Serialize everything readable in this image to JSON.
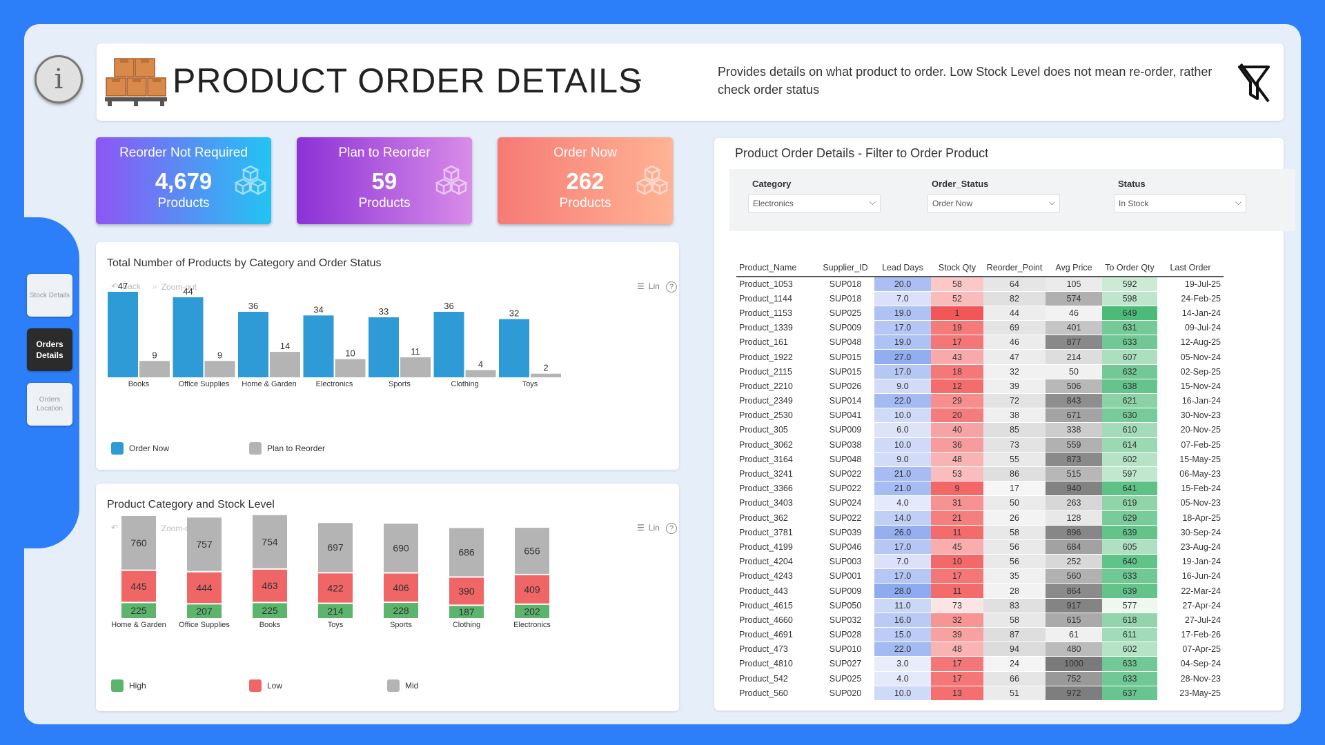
{
  "header": {
    "title": "PRODUCT ORDER DETAILS",
    "dash": "-",
    "description": "Provides details on what product to order. Low Stock Level does not mean re-order, rather check order status"
  },
  "info_symbol": "i",
  "nav": [
    {
      "label": "Stock Details",
      "active": false
    },
    {
      "label": "Orders Details",
      "active": true
    },
    {
      "label": "Orders Location",
      "active": false
    }
  ],
  "kpis": [
    {
      "title": "Reorder Not Required",
      "value": "4,679",
      "sub": "Products"
    },
    {
      "title": "Plan to Reorder",
      "value": "59",
      "sub": "Products"
    },
    {
      "title": "Order Now",
      "value": "262",
      "sub": "Products"
    }
  ],
  "toolbar": {
    "back": "Back",
    "zoom": "Zoom-out",
    "lin": "Lin",
    "help": "?"
  },
  "chart1": {
    "title": "Total Number of Products by Category and Order Status",
    "legend": [
      "Order Now",
      "Plan to Reorder"
    ]
  },
  "chart2": {
    "title": "Product Category and Stock Level",
    "legend": [
      "High",
      "Low",
      "Mid"
    ]
  },
  "chart_data": [
    {
      "type": "bar",
      "title": "Total Number of Products by Category and Order Status",
      "categories": [
        "Books",
        "Office Supplies",
        "Home & Garden",
        "Electronics",
        "Sports",
        "Clothing",
        "Toys"
      ],
      "series": [
        {
          "name": "Order Now",
          "color": "#2f9bd6",
          "values": [
            47,
            44,
            36,
            34,
            33,
            36,
            32
          ]
        },
        {
          "name": "Plan to Reorder",
          "color": "#b4b4b4",
          "values": [
            9,
            9,
            14,
            10,
            11,
            4,
            2
          ]
        }
      ],
      "ylim": [
        0,
        50
      ]
    },
    {
      "type": "bar",
      "stacked": true,
      "title": "Product Category and Stock Level",
      "categories": [
        "Home & Garden",
        "Office Supplies",
        "Books",
        "Toys",
        "Sports",
        "Clothing",
        "Electronics"
      ],
      "series": [
        {
          "name": "High",
          "color": "#5bb56c",
          "values": [
            225,
            207,
            225,
            214,
            228,
            187,
            202
          ]
        },
        {
          "name": "Low",
          "color": "#f06565",
          "values": [
            445,
            444,
            463,
            422,
            406,
            390,
            409
          ]
        },
        {
          "name": "Mid",
          "color": "#b4b4b4",
          "values": [
            760,
            757,
            754,
            697,
            690,
            686,
            656
          ]
        }
      ]
    }
  ],
  "table": {
    "title": "Product Order Details - Filter to Order Product",
    "filters": [
      {
        "label": "Category",
        "value": "Electronics"
      },
      {
        "label": "Order_Status",
        "value": "Order Now"
      },
      {
        "label": "Status",
        "value": "In Stock"
      }
    ],
    "columns": [
      "Product_Name",
      "Supplier_ID",
      "Lead Days",
      "Stock Qty",
      "Reorder_Point",
      "Avg Price",
      "To Order Qty",
      "Last Order"
    ],
    "rows": [
      [
        "Product_1053",
        "SUP018",
        "20.0",
        "58",
        "64",
        "105",
        "592",
        "19-Jul-25"
      ],
      [
        "Product_1144",
        "SUP018",
        "7.0",
        "52",
        "82",
        "574",
        "598",
        "24-Feb-25"
      ],
      [
        "Product_1153",
        "SUP025",
        "19.0",
        "1",
        "44",
        "46",
        "649",
        "14-Jan-24"
      ],
      [
        "Product_1339",
        "SUP009",
        "17.0",
        "19",
        "69",
        "401",
        "631",
        "09-Jul-24"
      ],
      [
        "Product_161",
        "SUP048",
        "19.0",
        "17",
        "46",
        "877",
        "633",
        "12-Aug-25"
      ],
      [
        "Product_1922",
        "SUP015",
        "27.0",
        "43",
        "47",
        "214",
        "607",
        "05-Nov-24"
      ],
      [
        "Product_2115",
        "SUP015",
        "17.0",
        "18",
        "32",
        "50",
        "632",
        "02-Sep-25"
      ],
      [
        "Product_2210",
        "SUP026",
        "9.0",
        "12",
        "39",
        "506",
        "638",
        "15-Nov-24"
      ],
      [
        "Product_2349",
        "SUP014",
        "22.0",
        "29",
        "72",
        "843",
        "621",
        "16-Jan-24"
      ],
      [
        "Product_2530",
        "SUP041",
        "10.0",
        "20",
        "38",
        "671",
        "630",
        "30-Nov-23"
      ],
      [
        "Product_305",
        "SUP009",
        "6.0",
        "40",
        "85",
        "338",
        "610",
        "20-Nov-25"
      ],
      [
        "Product_3062",
        "SUP038",
        "10.0",
        "36",
        "73",
        "559",
        "614",
        "07-Feb-25"
      ],
      [
        "Product_3164",
        "SUP048",
        "9.0",
        "48",
        "55",
        "873",
        "602",
        "15-May-25"
      ],
      [
        "Product_3241",
        "SUP022",
        "21.0",
        "53",
        "86",
        "515",
        "597",
        "06-May-23"
      ],
      [
        "Product_3366",
        "SUP022",
        "21.0",
        "9",
        "17",
        "940",
        "641",
        "15-Feb-24"
      ],
      [
        "Product_3403",
        "SUP024",
        "4.0",
        "31",
        "50",
        "263",
        "619",
        "05-Nov-23"
      ],
      [
        "Product_362",
        "SUP022",
        "14.0",
        "21",
        "26",
        "128",
        "629",
        "18-Apr-25"
      ],
      [
        "Product_3781",
        "SUP039",
        "26.0",
        "11",
        "58",
        "896",
        "639",
        "30-Sep-24"
      ],
      [
        "Product_4199",
        "SUP046",
        "17.0",
        "45",
        "56",
        "684",
        "605",
        "23-Aug-24"
      ],
      [
        "Product_4204",
        "SUP003",
        "7.0",
        "10",
        "56",
        "252",
        "640",
        "19-Jan-24"
      ],
      [
        "Product_4243",
        "SUP001",
        "17.0",
        "17",
        "35",
        "560",
        "633",
        "16-Jun-24"
      ],
      [
        "Product_443",
        "SUP009",
        "28.0",
        "11",
        "28",
        "864",
        "639",
        "22-Mar-24"
      ],
      [
        "Product_4615",
        "SUP050",
        "11.0",
        "73",
        "83",
        "917",
        "577",
        "27-Apr-24"
      ],
      [
        "Product_4660",
        "SUP032",
        "16.0",
        "32",
        "58",
        "615",
        "618",
        "27-Jul-24"
      ],
      [
        "Product_4691",
        "SUP028",
        "15.0",
        "39",
        "87",
        "61",
        "611",
        "17-Feb-26"
      ],
      [
        "Product_473",
        "SUP010",
        "22.0",
        "48",
        "94",
        "480",
        "602",
        "07-Apr-25"
      ],
      [
        "Product_4810",
        "SUP027",
        "3.0",
        "17",
        "24",
        "1000",
        "633",
        "04-Sep-24"
      ],
      [
        "Product_542",
        "SUP025",
        "4.0",
        "17",
        "66",
        "752",
        "633",
        "28-Nov-23"
      ],
      [
        "Product_560",
        "SUP020",
        "10.0",
        "13",
        "51",
        "972",
        "637",
        "23-May-25"
      ]
    ]
  }
}
